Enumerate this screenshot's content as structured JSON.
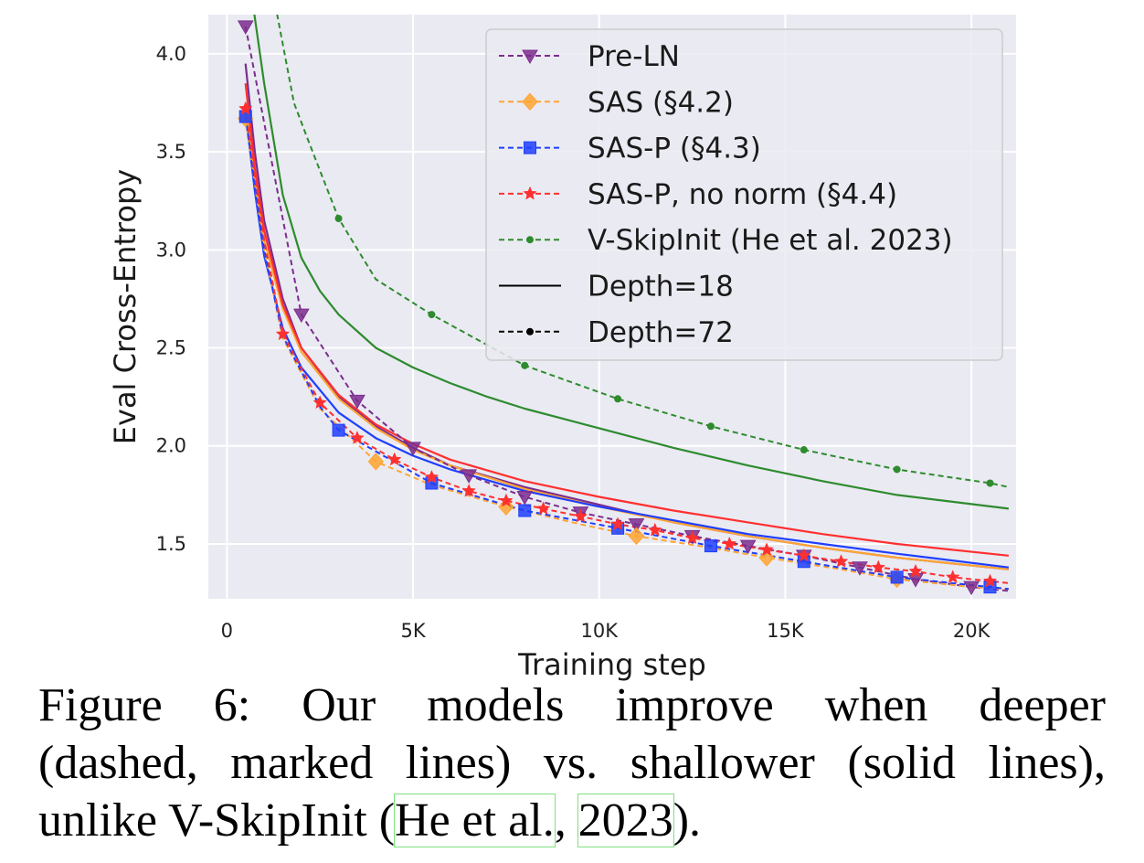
{
  "chart_data": {
    "type": "line",
    "title": "",
    "xlabel": "Training step",
    "ylabel": "Eval Cross-Entropy",
    "xlim": [
      -500,
      21200
    ],
    "ylim": [
      1.22,
      4.2
    ],
    "xticks": [
      0,
      5000,
      10000,
      15000,
      20000
    ],
    "xtick_labels": [
      "0",
      "5K",
      "10K",
      "15K",
      "20K"
    ],
    "yticks": [
      1.5,
      2.0,
      2.5,
      3.0,
      3.5,
      4.0
    ],
    "ytick_labels": [
      "1.5",
      "2.0",
      "2.5",
      "3.0",
      "3.5",
      "4.0"
    ],
    "grid": true,
    "legend_position": "top-right",
    "legend": [
      {
        "label": "Pre-LN",
        "color": "#7b2d8e",
        "marker": "triangle-down",
        "dash": true
      },
      {
        "label": "SAS (§4.2)",
        "color": "#ffa533",
        "marker": "diamond",
        "dash": true
      },
      {
        "label": "SAS-P (§4.3)",
        "color": "#1f3fff",
        "marker": "square",
        "dash": true
      },
      {
        "label": "SAS-P, no norm (§4.4)",
        "color": "#ff3030",
        "marker": "star",
        "dash": true
      },
      {
        "label": "V-SkipInit (He et al. 2023)",
        "color": "#2e8b2e",
        "marker": "dot",
        "dash": true
      },
      {
        "label": "Depth=18",
        "color": "#000000",
        "marker": "none",
        "dash": false
      },
      {
        "label": "Depth=72",
        "color": "#000000",
        "marker": "dot",
        "dash": true
      }
    ],
    "series": [
      {
        "name": "Pre-LN, Depth=18",
        "color": "#7b2d8e",
        "dash": false,
        "x": [
          500,
          750,
          1000,
          1500,
          2000,
          3000,
          4000,
          5000,
          6000,
          8000,
          10000,
          12000,
          14000,
          16000,
          18000,
          21000
        ],
        "y": [
          3.95,
          3.5,
          3.15,
          2.75,
          2.5,
          2.25,
          2.1,
          1.99,
          1.9,
          1.79,
          1.7,
          1.61,
          1.54,
          1.48,
          1.43,
          1.37
        ]
      },
      {
        "name": "SAS, Depth=18",
        "color": "#ffa533",
        "dash": false,
        "x": [
          500,
          750,
          1000,
          1500,
          2000,
          3000,
          4000,
          5000,
          6000,
          8000,
          10000,
          12000,
          14000,
          16000,
          18000,
          21000
        ],
        "y": [
          3.75,
          3.35,
          3.05,
          2.7,
          2.48,
          2.24,
          2.09,
          1.98,
          1.9,
          1.78,
          1.69,
          1.61,
          1.54,
          1.48,
          1.43,
          1.37
        ]
      },
      {
        "name": "SAS-P, Depth=18",
        "color": "#1f3fff",
        "dash": false,
        "x": [
          500,
          750,
          1000,
          1500,
          2000,
          3000,
          4000,
          5000,
          6000,
          8000,
          10000,
          12000,
          14000,
          16000,
          18000,
          21000
        ],
        "y": [
          3.7,
          3.3,
          2.97,
          2.6,
          2.4,
          2.17,
          2.04,
          1.95,
          1.88,
          1.77,
          1.69,
          1.62,
          1.55,
          1.5,
          1.45,
          1.38
        ]
      },
      {
        "name": "SAS-P, no norm, Depth=18",
        "color": "#ff3030",
        "dash": false,
        "x": [
          500,
          750,
          1000,
          1500,
          2000,
          3000,
          4000,
          5000,
          6000,
          8000,
          10000,
          12000,
          14000,
          16000,
          18000,
          21000
        ],
        "y": [
          3.85,
          3.42,
          3.1,
          2.72,
          2.5,
          2.26,
          2.11,
          2.01,
          1.93,
          1.82,
          1.74,
          1.67,
          1.61,
          1.55,
          1.5,
          1.44
        ]
      },
      {
        "name": "V-SkipInit, Depth=18",
        "color": "#2e8b2e",
        "dash": false,
        "x": [
          700,
          1000,
          1500,
          2000,
          2500,
          3000,
          4000,
          5000,
          6000,
          7000,
          8000,
          9000,
          10000,
          11000,
          12000,
          14000,
          16000,
          18000,
          21000
        ],
        "y": [
          4.25,
          3.85,
          3.28,
          2.96,
          2.79,
          2.67,
          2.5,
          2.4,
          2.32,
          2.25,
          2.19,
          2.14,
          2.09,
          2.04,
          1.99,
          1.9,
          1.82,
          1.75,
          1.68
        ]
      },
      {
        "name": "Pre-LN, Depth=72",
        "color": "#7b2d8e",
        "dash": true,
        "marker": "triangle-down",
        "x": [
          500,
          2000,
          3500,
          5000,
          6500,
          8000,
          9500,
          11000,
          12500,
          14000,
          15500,
          17000,
          18500,
          20000,
          21000
        ],
        "y": [
          4.14,
          2.67,
          2.23,
          1.99,
          1.85,
          1.74,
          1.66,
          1.6,
          1.54,
          1.49,
          1.44,
          1.38,
          1.32,
          1.28,
          1.26
        ],
        "marker_x": [
          500,
          2000,
          3500,
          5000,
          6500,
          8000,
          9500,
          11000,
          12500,
          14000,
          15500,
          17000,
          18500,
          20000
        ]
      },
      {
        "name": "SAS, Depth=72",
        "color": "#ffa533",
        "dash": true,
        "marker": "diamond",
        "x": [
          500,
          1000,
          1500,
          2500,
          4000,
          5500,
          7500,
          9500,
          11000,
          13000,
          14500,
          16500,
          18000,
          20000,
          21000
        ],
        "y": [
          3.67,
          3.0,
          2.55,
          2.19,
          1.92,
          1.8,
          1.69,
          1.6,
          1.54,
          1.48,
          1.43,
          1.37,
          1.32,
          1.28,
          1.27
        ],
        "marker_x": [
          500,
          4000,
          7500,
          11000,
          14500,
          18000
        ]
      },
      {
        "name": "SAS-P, Depth=72",
        "color": "#1f3fff",
        "dash": true,
        "marker": "square",
        "x": [
          500,
          1000,
          1500,
          2500,
          3000,
          5500,
          8000,
          10500,
          13000,
          15500,
          18000,
          20500,
          21000
        ],
        "y": [
          3.68,
          3.0,
          2.56,
          2.2,
          2.08,
          1.81,
          1.67,
          1.58,
          1.49,
          1.41,
          1.33,
          1.28,
          1.27
        ],
        "marker_x": [
          500,
          3000,
          5500,
          8000,
          10500,
          13000,
          15500,
          18000,
          20500
        ]
      },
      {
        "name": "SAS-P, no norm, Depth=72",
        "color": "#ff3030",
        "dash": true,
        "marker": "star",
        "x": [
          500,
          1000,
          1500,
          2500,
          3500,
          4500,
          5500,
          6500,
          7500,
          8500,
          9500,
          10500,
          11500,
          12500,
          13500,
          14500,
          15500,
          16500,
          17500,
          18500,
          19500,
          20500,
          21000
        ],
        "y": [
          3.72,
          3.05,
          2.57,
          2.22,
          2.04,
          1.93,
          1.84,
          1.77,
          1.72,
          1.68,
          1.64,
          1.6,
          1.57,
          1.53,
          1.5,
          1.47,
          1.44,
          1.41,
          1.38,
          1.36,
          1.33,
          1.31,
          1.3
        ],
        "marker_x": [
          500,
          1500,
          2500,
          3500,
          4500,
          5500,
          6500,
          7500,
          8500,
          9500,
          10500,
          11500,
          12500,
          13500,
          14500,
          15500,
          16500,
          17500,
          18500,
          19500,
          20500
        ]
      },
      {
        "name": "V-SkipInit, Depth=72",
        "color": "#2e8b2e",
        "dash": true,
        "marker": "dot",
        "x": [
          1300,
          1800,
          2200,
          3000,
          4000,
          5500,
          8000,
          10500,
          13000,
          15500,
          18000,
          20500,
          21000
        ],
        "y": [
          4.25,
          3.75,
          3.55,
          3.16,
          2.85,
          2.67,
          2.41,
          2.24,
          2.1,
          1.98,
          1.88,
          1.81,
          1.79
        ],
        "marker_x": [
          3000,
          5500,
          8000,
          10500,
          13000,
          15500,
          18000,
          20500
        ]
      }
    ]
  },
  "caption": {
    "line1": "Figure 6:  Our models improve when deeper",
    "line2": "(dashed, marked lines) vs. shallower (solid lines),",
    "line3_pre": "unlike V-SkipInit (",
    "cite_author": "He et al.",
    "cite_sep": ", ",
    "cite_year": "2023",
    "line3_post": ")."
  }
}
